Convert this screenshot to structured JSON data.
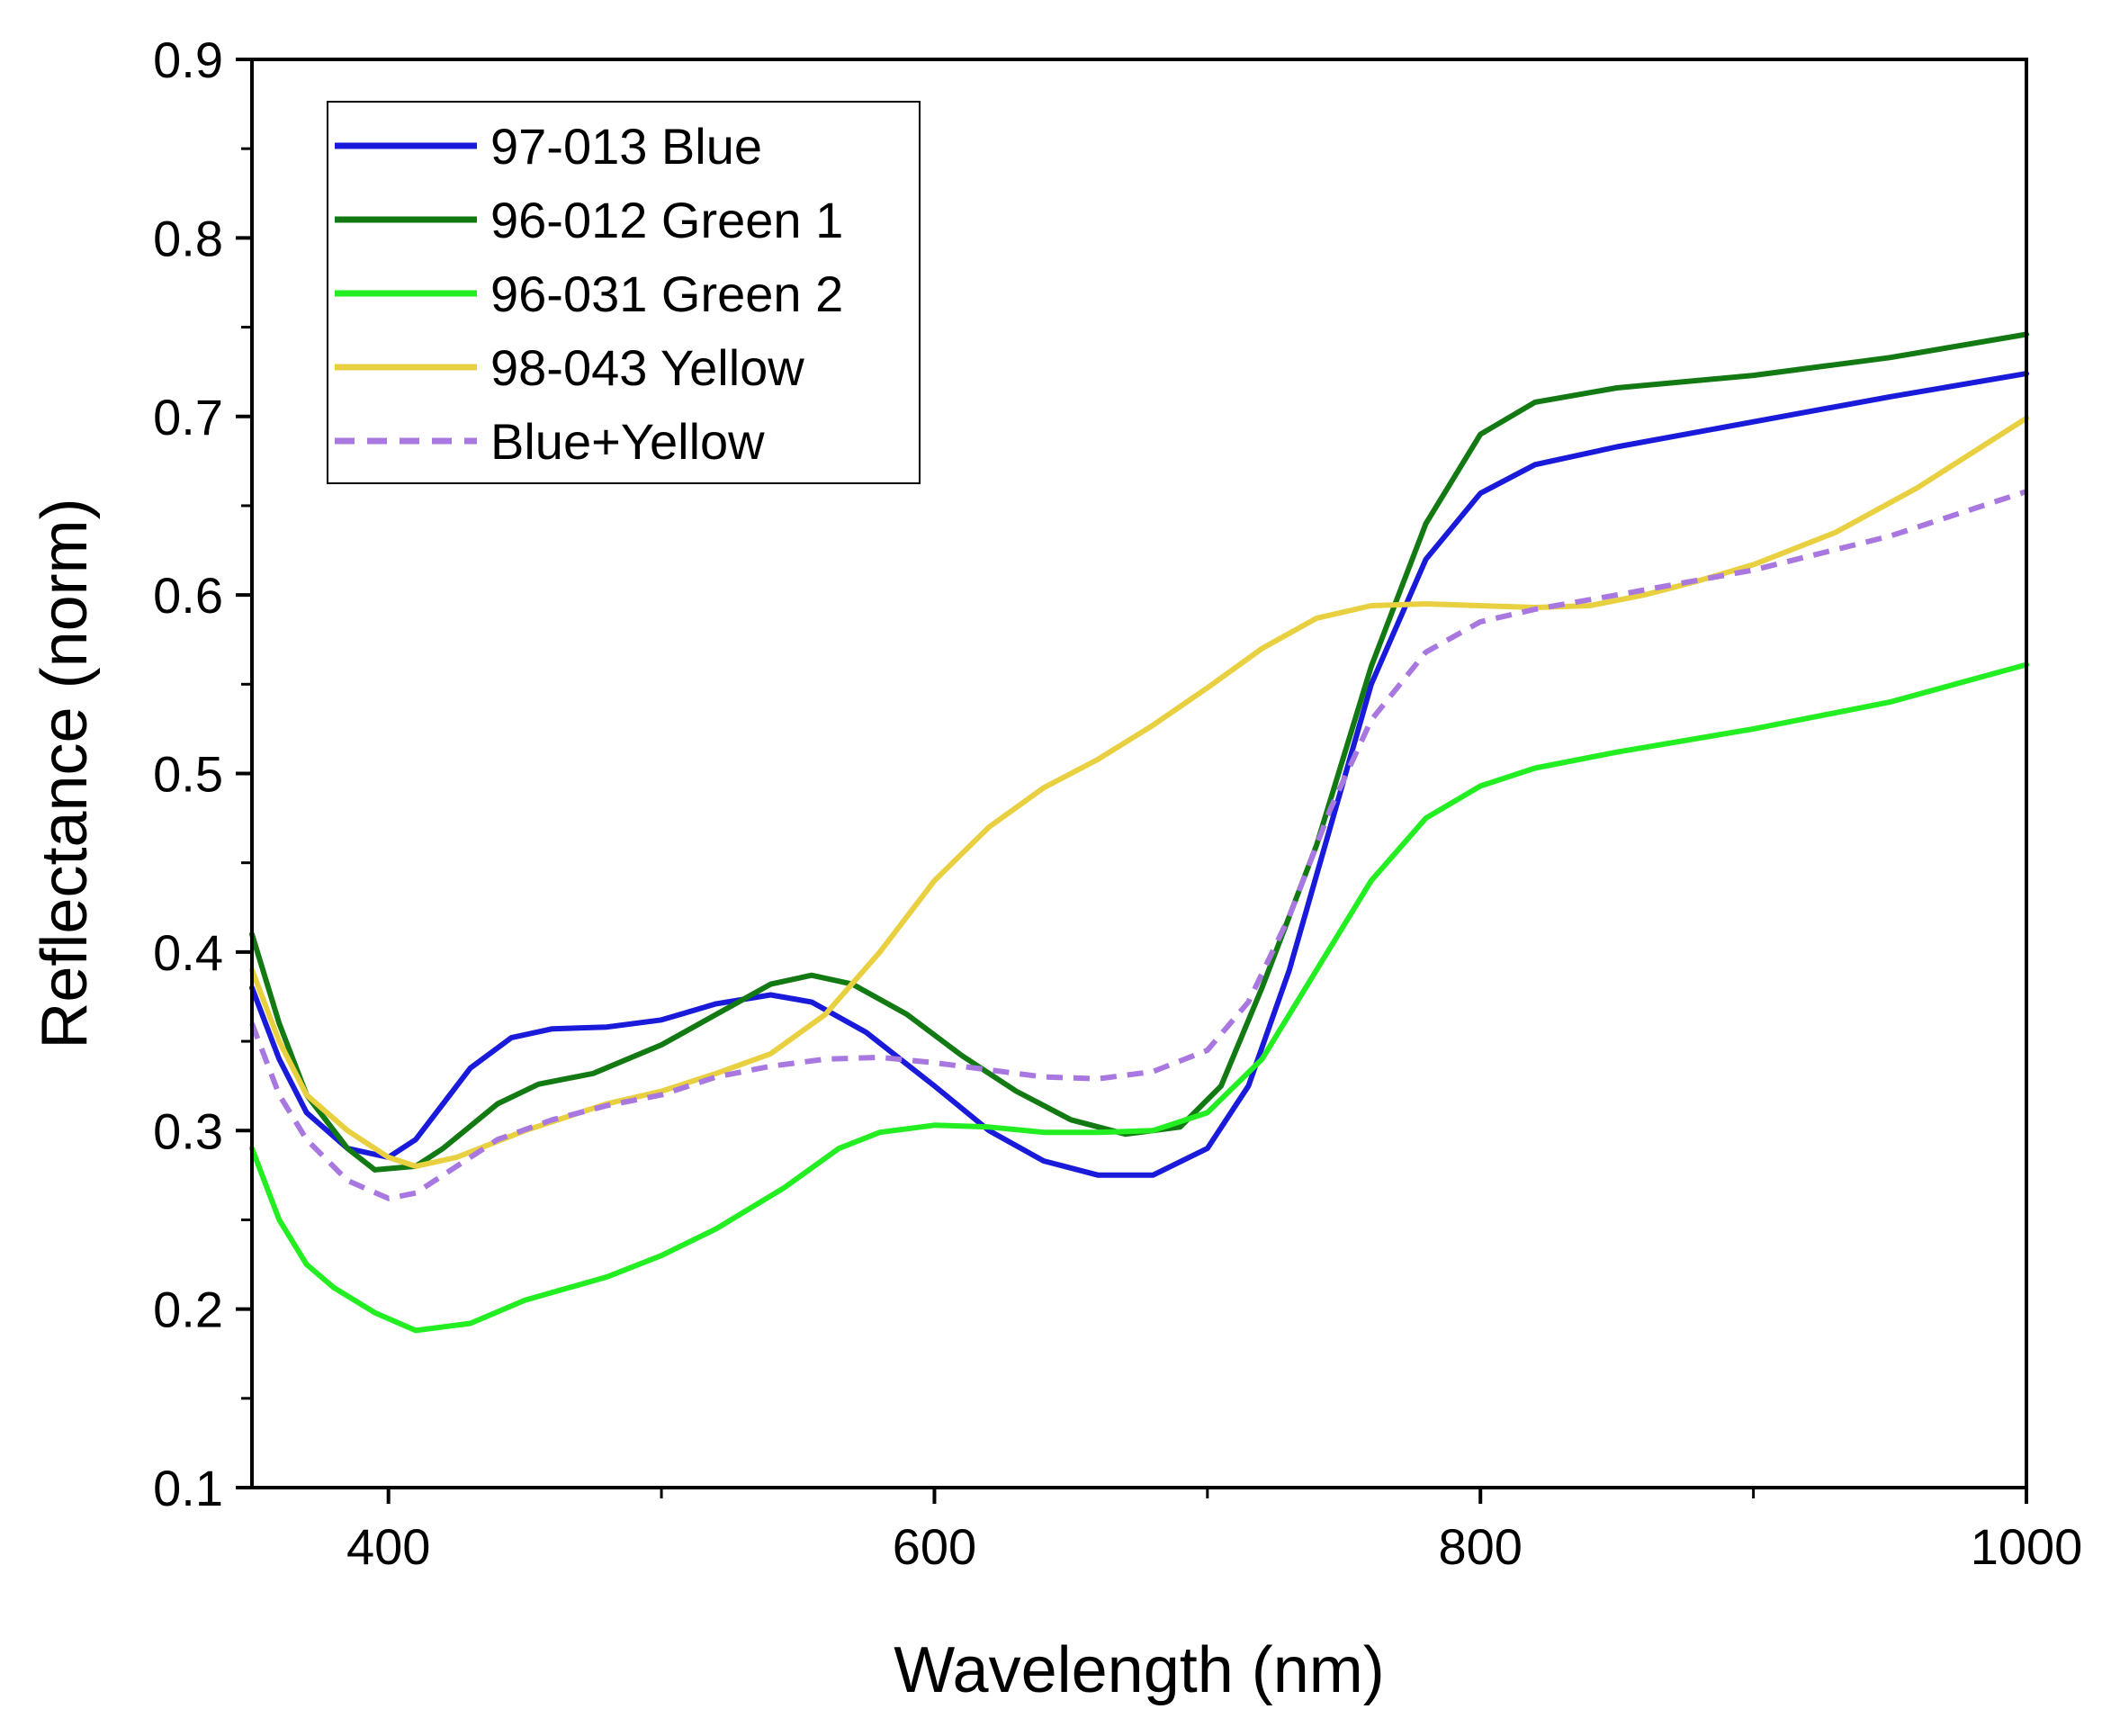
{
  "chart_data": {
    "type": "line",
    "title": "",
    "xlabel": "Wavelength (nm)",
    "ylabel": "Reflectance (norm)",
    "xlim": [
      350,
      1000
    ],
    "ylim": [
      0.1,
      0.9
    ],
    "x_ticks": [
      400,
      600,
      800,
      1000
    ],
    "x_minor_ticks": [
      500,
      700,
      900
    ],
    "y_ticks": [
      0.1,
      0.2,
      0.3,
      0.4,
      0.5,
      0.6,
      0.7,
      0.8,
      0.9
    ],
    "y_tick_labels": [
      "0.1",
      "0.2",
      "0.3",
      "0.4",
      "0.5",
      "0.6",
      "0.7",
      "0.8",
      "0.9"
    ],
    "legend_position": "top-left",
    "grid": false,
    "series": [
      {
        "name": "97-013 Blue",
        "color": "#1a1adb",
        "dash": "solid",
        "points": [
          [
            350,
            0.38
          ],
          [
            360,
            0.34
          ],
          [
            370,
            0.31
          ],
          [
            385,
            0.29
          ],
          [
            400,
            0.285
          ],
          [
            410,
            0.295
          ],
          [
            420,
            0.315
          ],
          [
            430,
            0.335
          ],
          [
            445,
            0.352
          ],
          [
            460,
            0.357
          ],
          [
            480,
            0.358
          ],
          [
            500,
            0.362
          ],
          [
            520,
            0.371
          ],
          [
            540,
            0.376
          ],
          [
            555,
            0.372
          ],
          [
            575,
            0.355
          ],
          [
            600,
            0.325
          ],
          [
            620,
            0.3
          ],
          [
            640,
            0.283
          ],
          [
            660,
            0.275
          ],
          [
            680,
            0.275
          ],
          [
            700,
            0.29
          ],
          [
            715,
            0.325
          ],
          [
            730,
            0.39
          ],
          [
            745,
            0.47
          ],
          [
            760,
            0.55
          ],
          [
            780,
            0.62
          ],
          [
            800,
            0.657
          ],
          [
            820,
            0.673
          ],
          [
            850,
            0.683
          ],
          [
            900,
            0.697
          ],
          [
            950,
            0.711
          ],
          [
            1000,
            0.724
          ]
        ]
      },
      {
        "name": "96-012 Green 1",
        "color": "#137a13",
        "dash": "solid",
        "points": [
          [
            350,
            0.41
          ],
          [
            360,
            0.36
          ],
          [
            370,
            0.32
          ],
          [
            385,
            0.29
          ],
          [
            395,
            0.278
          ],
          [
            410,
            0.28
          ],
          [
            420,
            0.29
          ],
          [
            440,
            0.315
          ],
          [
            455,
            0.326
          ],
          [
            475,
            0.332
          ],
          [
            500,
            0.348
          ],
          [
            520,
            0.365
          ],
          [
            540,
            0.382
          ],
          [
            555,
            0.387
          ],
          [
            570,
            0.382
          ],
          [
            590,
            0.365
          ],
          [
            610,
            0.342
          ],
          [
            630,
            0.322
          ],
          [
            650,
            0.306
          ],
          [
            670,
            0.298
          ],
          [
            690,
            0.302
          ],
          [
            705,
            0.325
          ],
          [
            720,
            0.38
          ],
          [
            740,
            0.46
          ],
          [
            760,
            0.56
          ],
          [
            780,
            0.64
          ],
          [
            800,
            0.69
          ],
          [
            820,
            0.708
          ],
          [
            850,
            0.716
          ],
          [
            900,
            0.723
          ],
          [
            950,
            0.733
          ],
          [
            1000,
            0.746
          ]
        ]
      },
      {
        "name": "96-031 Green 2",
        "color": "#22ee22",
        "dash": "solid",
        "points": [
          [
            350,
            0.29
          ],
          [
            360,
            0.25
          ],
          [
            370,
            0.225
          ],
          [
            380,
            0.212
          ],
          [
            395,
            0.198
          ],
          [
            410,
            0.188
          ],
          [
            430,
            0.192
          ],
          [
            450,
            0.205
          ],
          [
            480,
            0.218
          ],
          [
            500,
            0.23
          ],
          [
            520,
            0.245
          ],
          [
            545,
            0.268
          ],
          [
            565,
            0.29
          ],
          [
            580,
            0.299
          ],
          [
            600,
            0.303
          ],
          [
            620,
            0.302
          ],
          [
            640,
            0.299
          ],
          [
            660,
            0.299
          ],
          [
            680,
            0.3
          ],
          [
            700,
            0.31
          ],
          [
            720,
            0.34
          ],
          [
            740,
            0.39
          ],
          [
            760,
            0.44
          ],
          [
            780,
            0.475
          ],
          [
            800,
            0.493
          ],
          [
            820,
            0.503
          ],
          [
            850,
            0.512
          ],
          [
            900,
            0.525
          ],
          [
            950,
            0.54
          ],
          [
            1000,
            0.561
          ]
        ]
      },
      {
        "name": "98-043 Yellow",
        "color": "#e8d040",
        "dash": "solid",
        "points": [
          [
            350,
            0.39
          ],
          [
            360,
            0.35
          ],
          [
            370,
            0.32
          ],
          [
            385,
            0.3
          ],
          [
            400,
            0.285
          ],
          [
            410,
            0.28
          ],
          [
            425,
            0.285
          ],
          [
            450,
            0.3
          ],
          [
            480,
            0.315
          ],
          [
            500,
            0.322
          ],
          [
            520,
            0.332
          ],
          [
            540,
            0.343
          ],
          [
            560,
            0.365
          ],
          [
            580,
            0.4
          ],
          [
            600,
            0.44
          ],
          [
            620,
            0.47
          ],
          [
            640,
            0.492
          ],
          [
            660,
            0.508
          ],
          [
            680,
            0.527
          ],
          [
            700,
            0.548
          ],
          [
            720,
            0.57
          ],
          [
            740,
            0.587
          ],
          [
            760,
            0.594
          ],
          [
            780,
            0.595
          ],
          [
            800,
            0.594
          ],
          [
            820,
            0.593
          ],
          [
            840,
            0.594
          ],
          [
            860,
            0.6
          ],
          [
            880,
            0.608
          ],
          [
            900,
            0.617
          ],
          [
            930,
            0.635
          ],
          [
            960,
            0.66
          ],
          [
            1000,
            0.699
          ]
        ]
      },
      {
        "name": "Blue+Yellow",
        "color": "#a878e0",
        "dash": "dashed",
        "points": [
          [
            350,
            0.36
          ],
          [
            360,
            0.32
          ],
          [
            370,
            0.295
          ],
          [
            385,
            0.272
          ],
          [
            400,
            0.262
          ],
          [
            410,
            0.265
          ],
          [
            420,
            0.275
          ],
          [
            440,
            0.295
          ],
          [
            460,
            0.306
          ],
          [
            480,
            0.314
          ],
          [
            500,
            0.32
          ],
          [
            520,
            0.33
          ],
          [
            540,
            0.336
          ],
          [
            560,
            0.34
          ],
          [
            580,
            0.341
          ],
          [
            600,
            0.338
          ],
          [
            620,
            0.334
          ],
          [
            640,
            0.33
          ],
          [
            660,
            0.329
          ],
          [
            680,
            0.333
          ],
          [
            700,
            0.345
          ],
          [
            715,
            0.372
          ],
          [
            730,
            0.42
          ],
          [
            745,
            0.48
          ],
          [
            760,
            0.53
          ],
          [
            780,
            0.568
          ],
          [
            800,
            0.585
          ],
          [
            820,
            0.592
          ],
          [
            850,
            0.6
          ],
          [
            900,
            0.614
          ],
          [
            950,
            0.633
          ],
          [
            1000,
            0.658
          ]
        ]
      }
    ]
  }
}
